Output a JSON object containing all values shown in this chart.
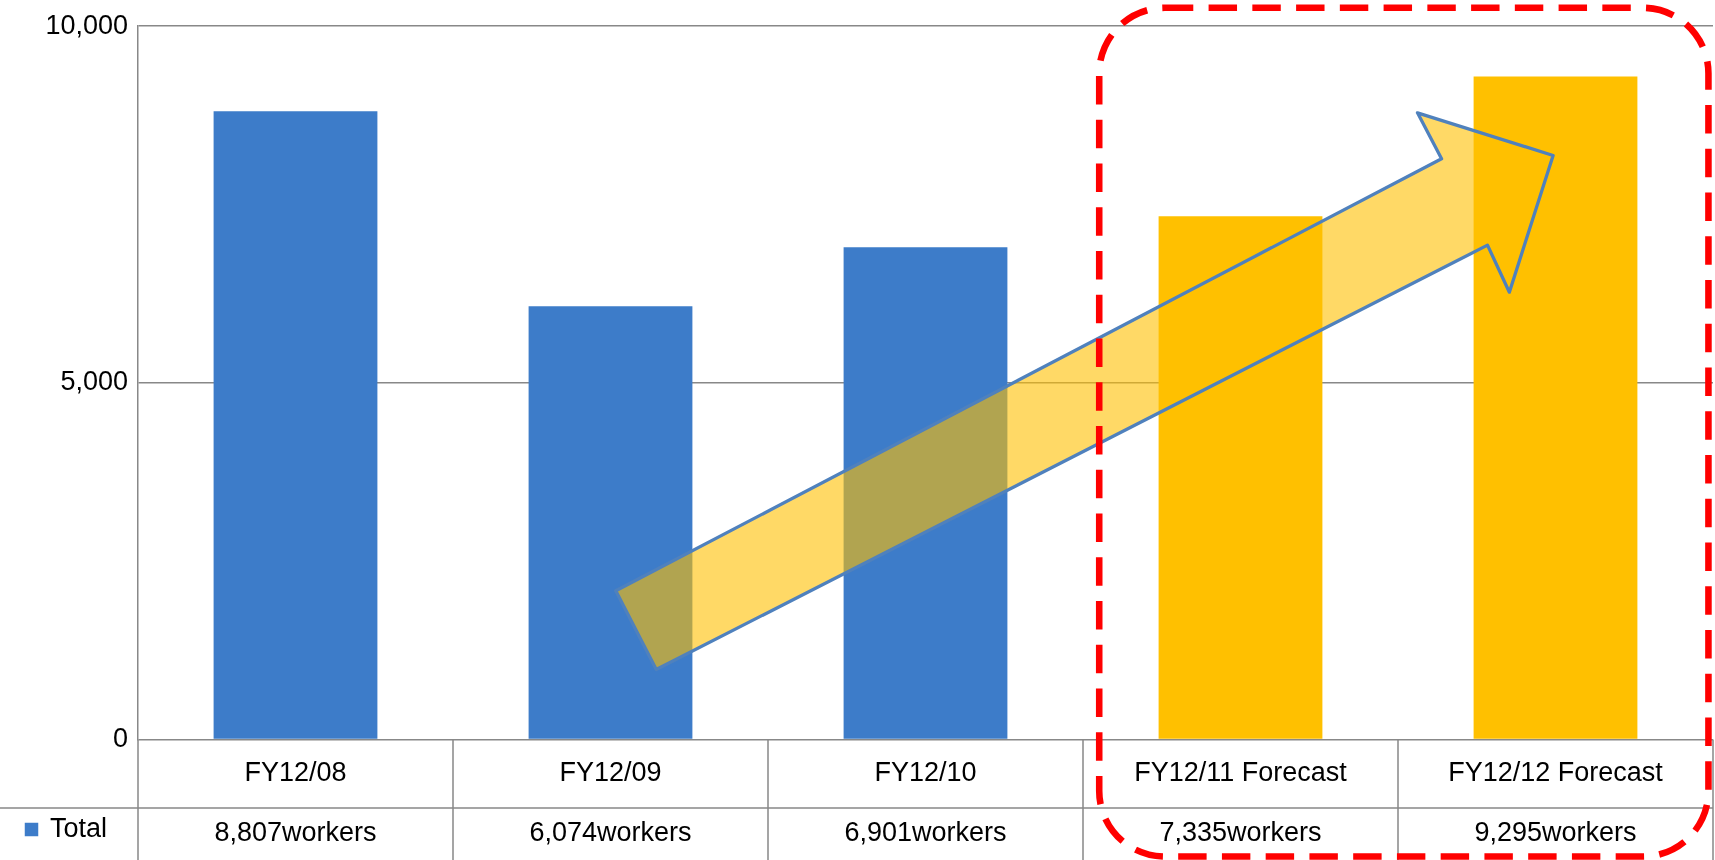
{
  "chart_data": {
    "type": "bar",
    "categories": [
      "FY12/08",
      "FY12/09",
      "FY12/10",
      "FY12/11 Forecast",
      "FY12/12 Forecast"
    ],
    "series": [
      {
        "name": "Total",
        "color": "#3d7cc9",
        "colors": [
          "#3d7cc9",
          "#3d7cc9",
          "#3d7cc9",
          "#ffc000",
          "#ffc000"
        ],
        "values": [
          8807,
          6074,
          6901,
          7335,
          9295
        ],
        "value_labels": [
          "8,807workers",
          "6,074workers",
          "6,901workers",
          "7,335workers",
          "9,295workers"
        ]
      }
    ],
    "ylim": [
      0,
      10000
    ],
    "yticks": [
      {
        "value": 0,
        "label": "0"
      },
      {
        "value": 5000,
        "label": "5,000"
      },
      {
        "value": 10000,
        "label": "10,000"
      }
    ],
    "grid": "y",
    "legend": "bottom left"
  }
}
